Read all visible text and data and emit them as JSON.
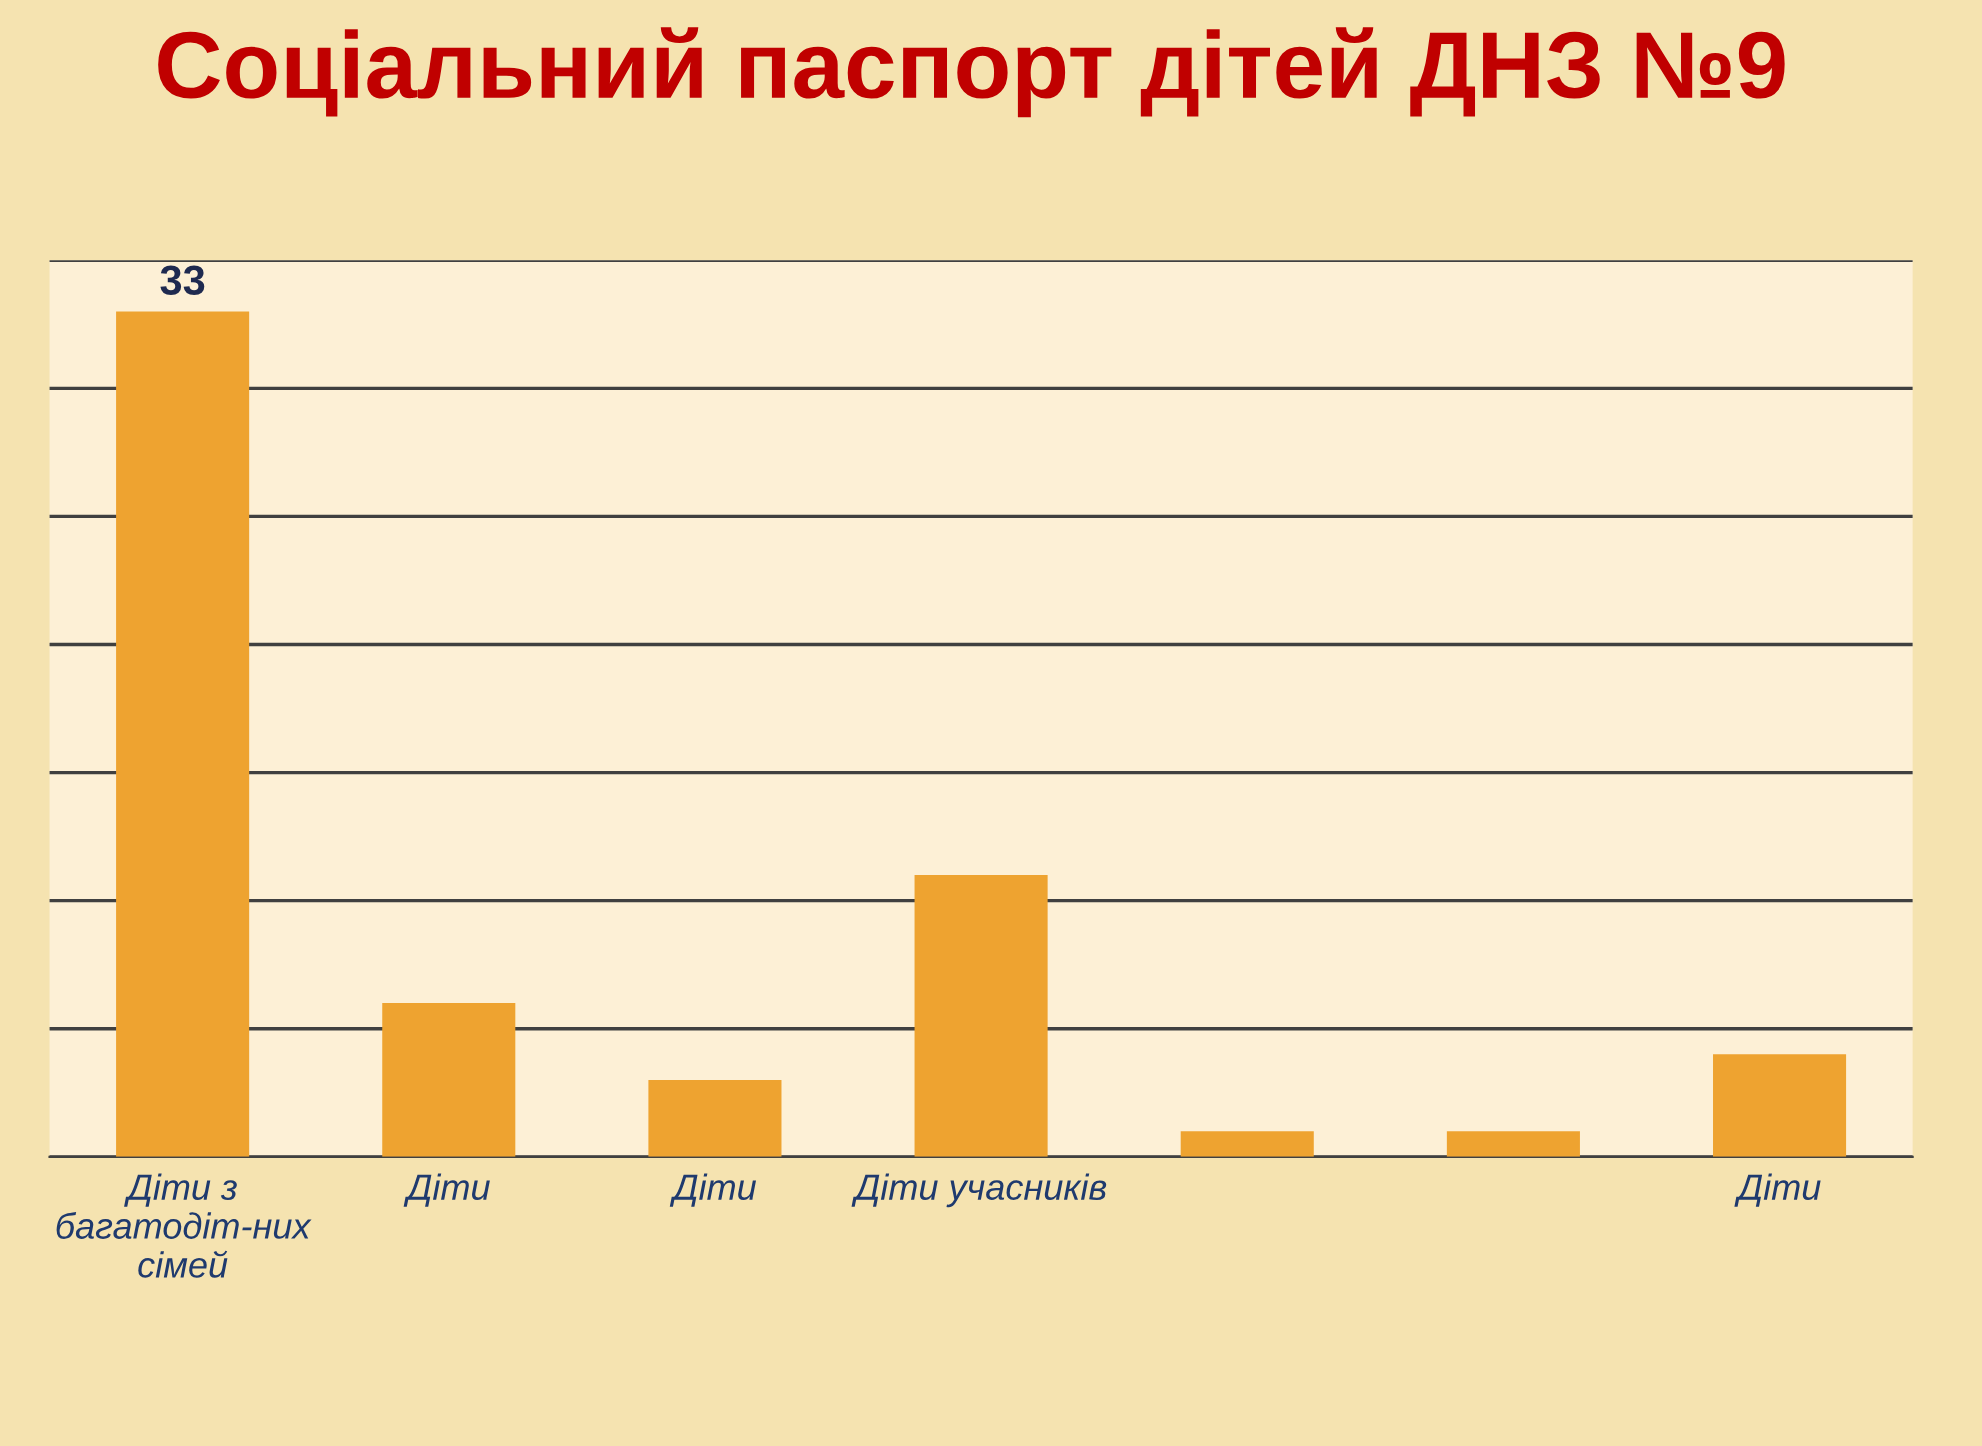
{
  "chart_data": {
    "type": "bar",
    "title": "Соціальний паспорт дітей ДНЗ №9",
    "categories": [
      "Діти з багатодіт-них сімей",
      "Діти",
      "Діти",
      "Діти учасників",
      null,
      null,
      "Діти"
    ],
    "values": [
      33,
      6,
      3,
      11,
      1,
      1,
      4
    ],
    "value_labels": [
      "33",
      null,
      null,
      null,
      null,
      null,
      null
    ],
    "color": "#eea330",
    "ylim": [
      0,
      35
    ],
    "yticks": [
      {
        "value": 0,
        "label": null
      },
      {
        "value": 5,
        "label": null
      },
      {
        "value": 10,
        "label": null
      },
      {
        "value": 15,
        "label": null
      },
      {
        "value": 20,
        "label": null
      },
      {
        "value": 25,
        "label": null
      },
      {
        "value": 30,
        "label": null
      },
      {
        "value": 35,
        "label": null
      }
    ],
    "tick_labels": "x",
    "grid": "y"
  }
}
